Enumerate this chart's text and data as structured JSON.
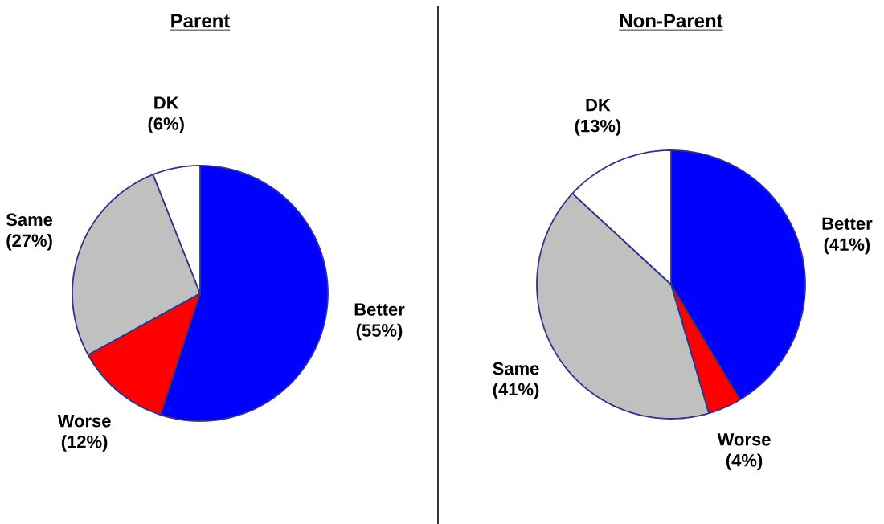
{
  "chart_data": [
    {
      "type": "pie",
      "title": "Parent",
      "categories": [
        "Better",
        "Worse",
        "Same",
        "DK"
      ],
      "values": [
        55,
        12,
        27,
        6
      ],
      "colors": [
        "#0000ff",
        "#ff0000",
        "#c0c0c0",
        "#ffffff"
      ],
      "value_labels": [
        "(55%)",
        "(12%)",
        "(27%)",
        "(6%)"
      ]
    },
    {
      "type": "pie",
      "title": "Non-Parent",
      "categories": [
        "Better",
        "Worse",
        "Same",
        "DK"
      ],
      "values": [
        41,
        4,
        41,
        13
      ],
      "colors": [
        "#0000ff",
        "#ff0000",
        "#c0c0c0",
        "#ffffff"
      ],
      "value_labels": [
        "(41%)",
        "(4%)",
        "(41%)",
        "(13%)"
      ]
    }
  ]
}
